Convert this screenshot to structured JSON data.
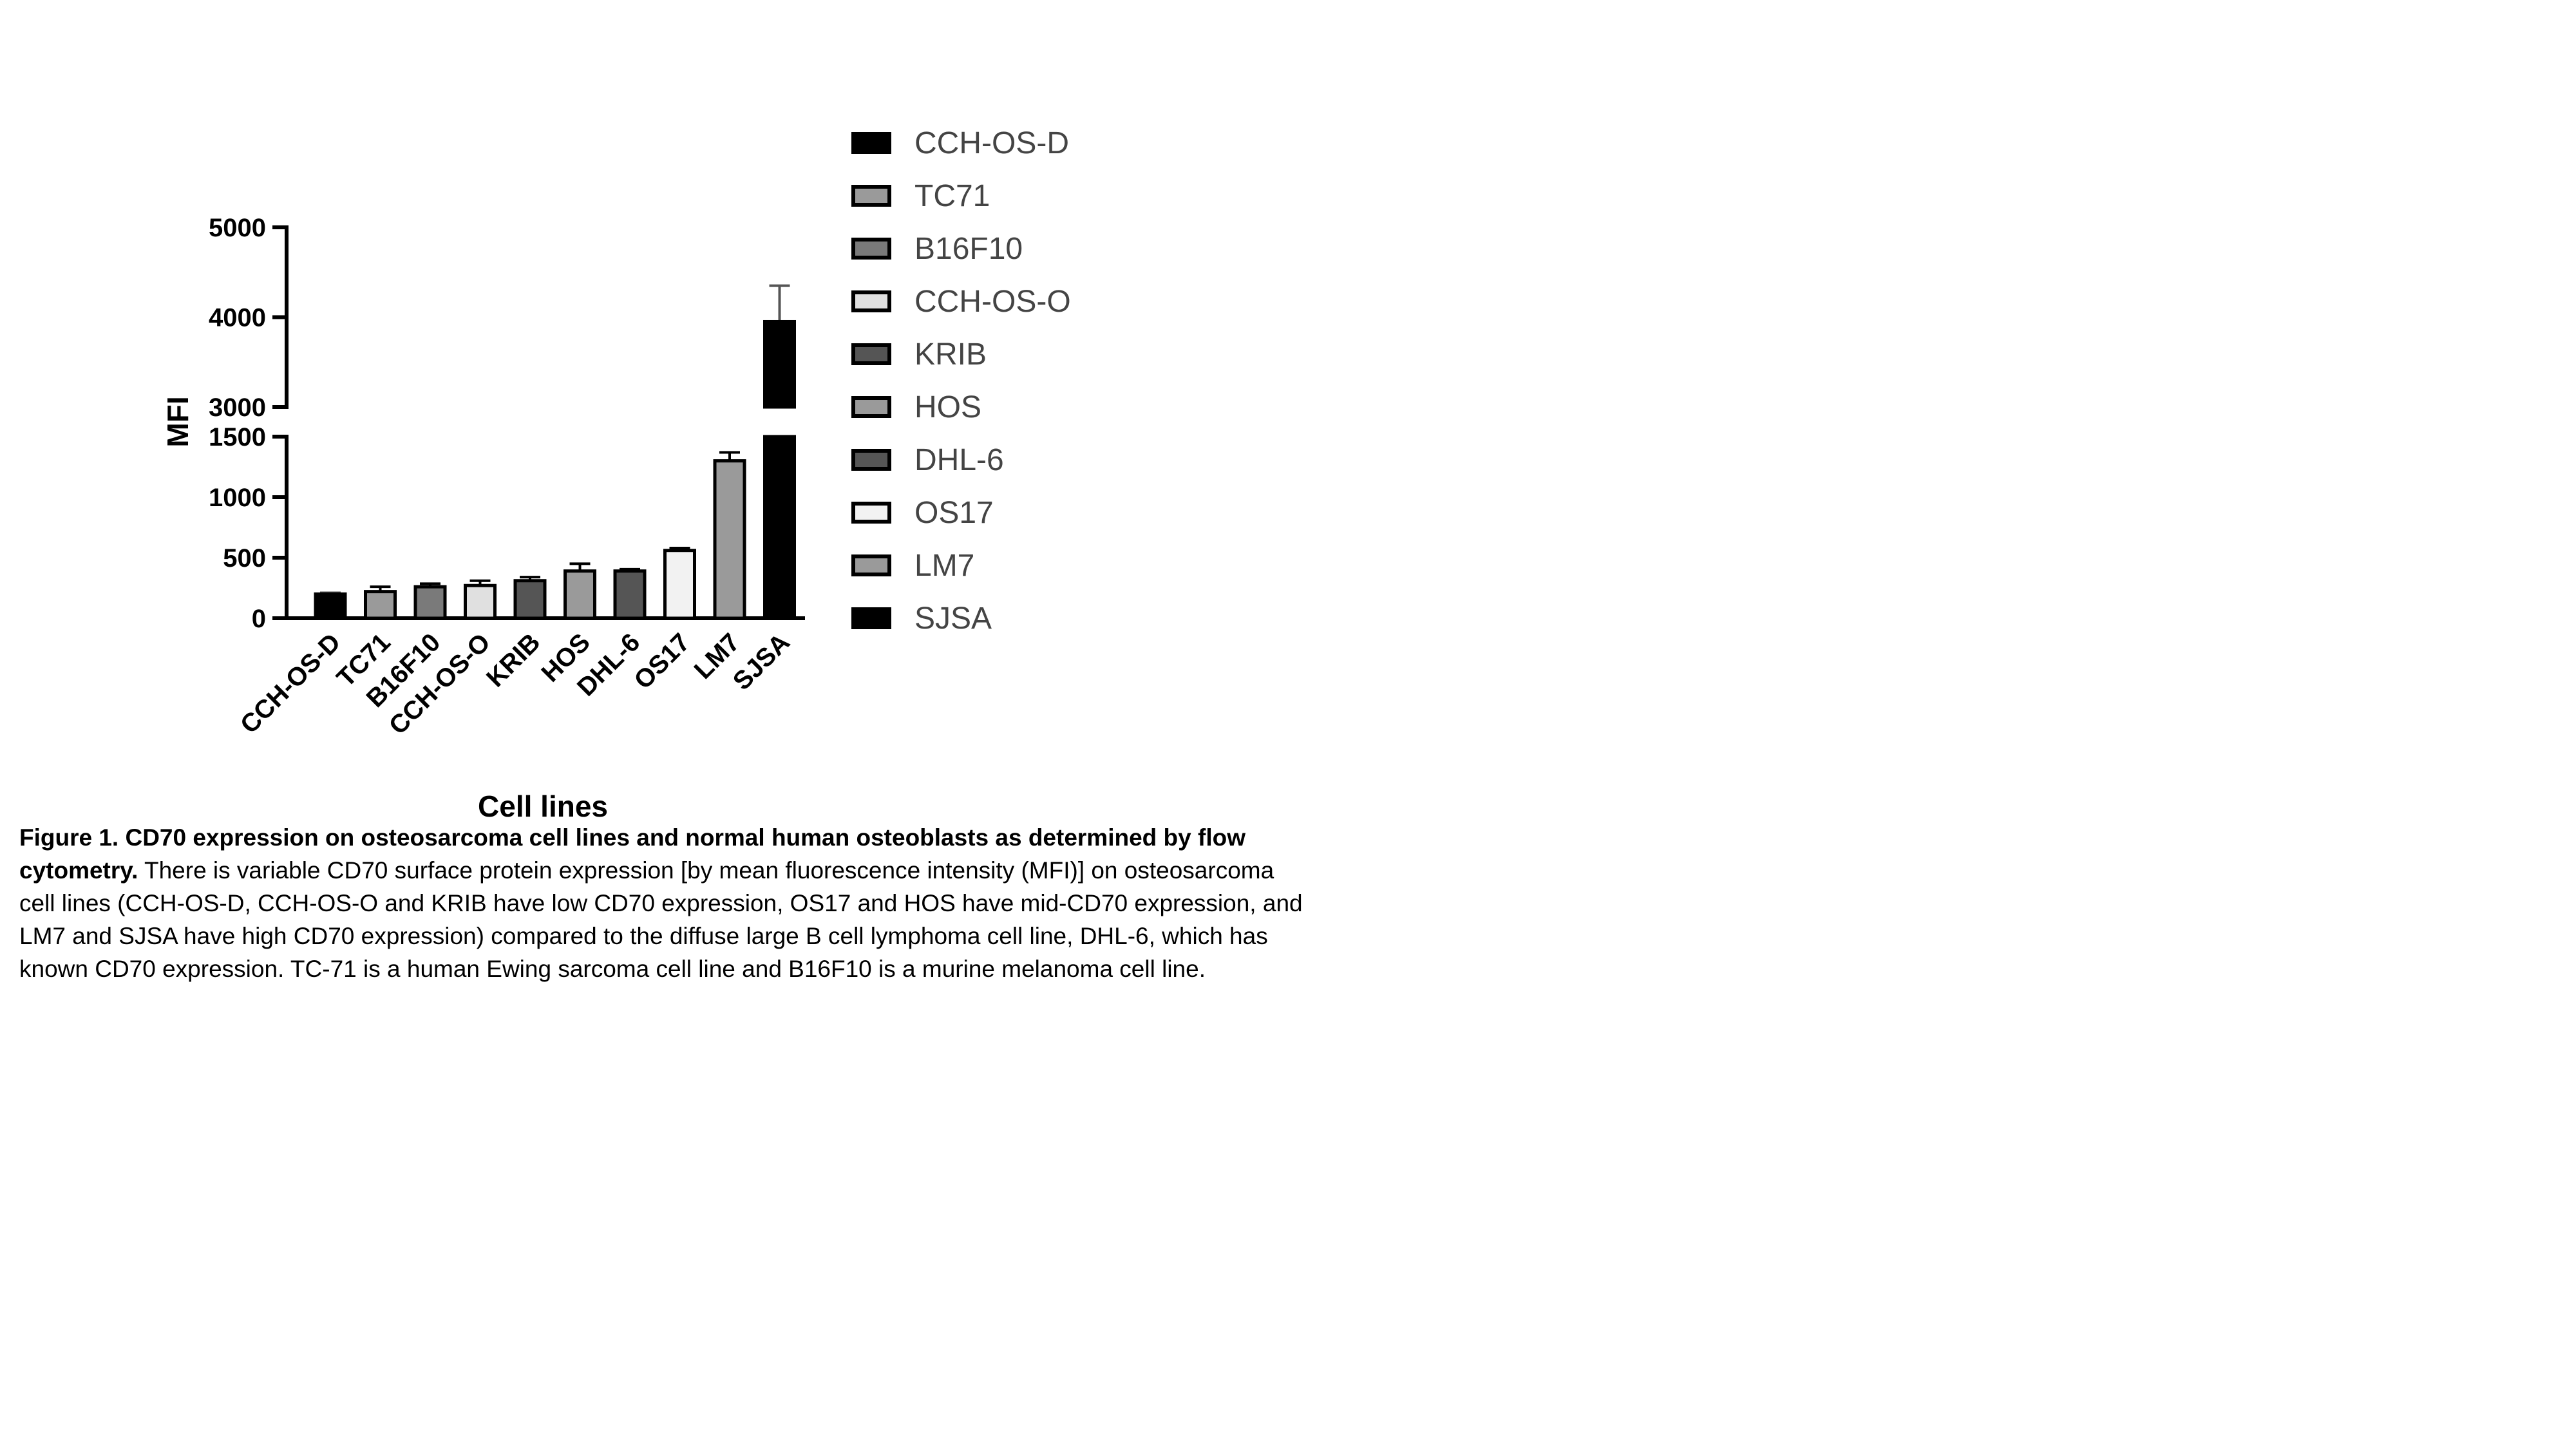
{
  "chart_data": {
    "type": "bar",
    "categories": [
      "CCH-OS-D",
      "TC71",
      "B16F10",
      "CCH-OS-O",
      "KRIB",
      "HOS",
      "DHL-6",
      "OS17",
      "LM7",
      "SJSA"
    ],
    "series": [
      {
        "values": [
          200,
          220,
          260,
          270,
          310,
          390,
          390,
          560,
          1300,
          3950
        ],
        "errors": [
          10,
          40,
          25,
          40,
          30,
          60,
          15,
          20,
          70,
          400
        ]
      }
    ],
    "bar_colors": [
      "#000000",
      "#9a9a9a",
      "#7a7a7a",
      "#e0e0e0",
      "#555555",
      "#9a9a9a",
      "#555555",
      "#f2f2f2",
      "#9a9a9a",
      "#000000"
    ],
    "xlabel": "Cell lines",
    "ylabel": "MFI",
    "ylim": [
      0,
      5000
    ],
    "y_axis_break": [
      1500,
      3000
    ],
    "yticks_lower": [
      0,
      500,
      1000,
      1500
    ],
    "yticks_upper": [
      3000,
      4000,
      5000
    ],
    "legend": [
      "CCH-OS-D",
      "TC71",
      "B16F10",
      "CCH-OS-O",
      "KRIB",
      "HOS",
      "DHL-6",
      "OS17",
      "LM7",
      "SJSA"
    ],
    "legend_position": "right",
    "grid": false
  },
  "caption": {
    "title": "Figure 1. CD70 expression on osteosarcoma cell lines and normal human osteoblasts as determined by flow cytometry.",
    "body": " There is variable CD70 surface protein expression [by mean fluorescence intensity (MFI)] on osteosarcoma cell lines (CCH-OS-D, CCH-OS-O and KRIB have low CD70 expression, OS17 and HOS have mid-CD70 expression, and LM7 and SJSA have high CD70 expression) compared to the diffuse large B cell lymphoma cell line, DHL-6, which has known CD70 expression. TC-71 is a human Ewing sarcoma cell line and B16F10 is a murine melanoma cell line."
  }
}
